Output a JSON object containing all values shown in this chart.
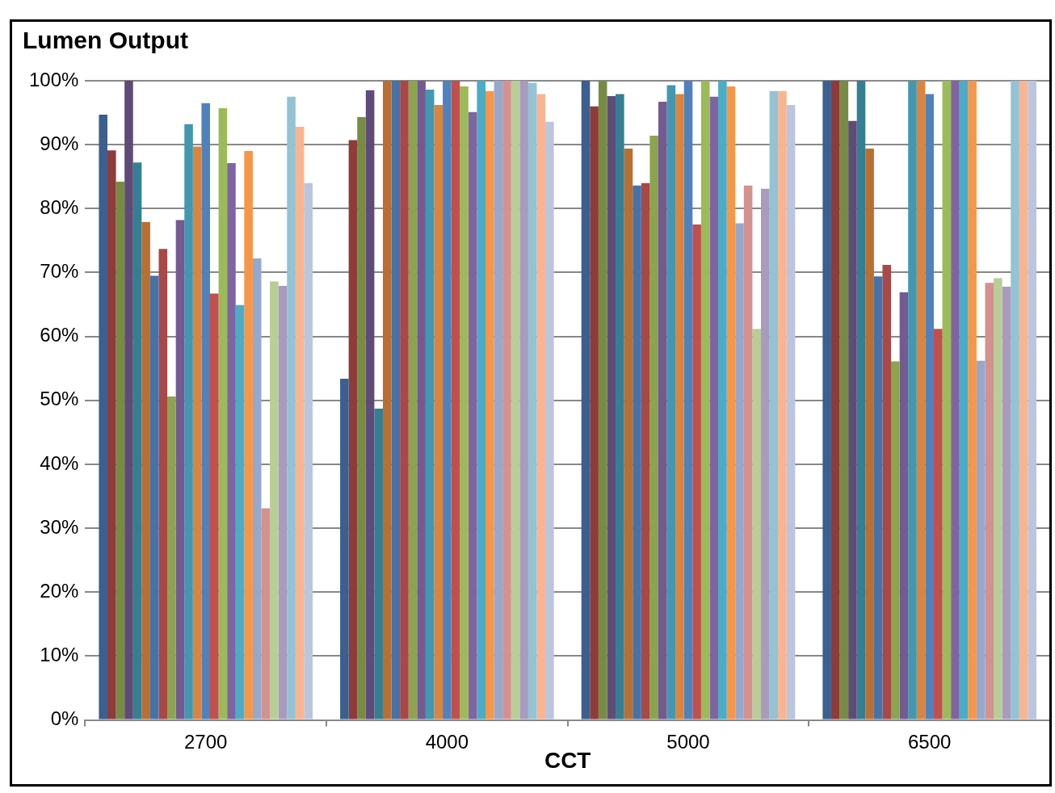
{
  "chart_data": {
    "type": "bar",
    "title": "Lumen Output",
    "xlabel": "CCT",
    "categories": [
      "2700",
      "4000",
      "5000",
      "6500"
    ],
    "series": [
      {
        "color": "#3b5f8e",
        "values": [
          94.7,
          53.4,
          100,
          100
        ]
      },
      {
        "color": "#8e3b3a",
        "values": [
          89.1,
          90.7,
          96.0,
          100
        ]
      },
      {
        "color": "#778c43",
        "values": [
          84.2,
          94.3,
          100,
          100
        ]
      },
      {
        "color": "#5f4b78",
        "values": [
          100,
          98.5,
          97.6,
          93.7
        ]
      },
      {
        "color": "#357f93",
        "values": [
          87.2,
          48.7,
          97.9,
          100
        ]
      },
      {
        "color": "#b96f32",
        "values": [
          77.9,
          100,
          89.4,
          89.4
        ]
      },
      {
        "color": "#4672a8",
        "values": [
          69.5,
          100,
          83.6,
          69.4
        ]
      },
      {
        "color": "#a94846",
        "values": [
          73.7,
          100,
          84.0,
          71.2
        ]
      },
      {
        "color": "#8aa54e",
        "values": [
          50.6,
          100,
          91.4,
          56.1
        ]
      },
      {
        "color": "#735a91",
        "values": [
          78.2,
          100,
          96.7,
          66.9
        ]
      },
      {
        "color": "#4298b0",
        "values": [
          93.2,
          98.6,
          99.3,
          100
        ]
      },
      {
        "color": "#db843d",
        "values": [
          89.7,
          96.2,
          97.9,
          100
        ]
      },
      {
        "color": "#4f81bd",
        "values": [
          96.5,
          100,
          100,
          97.9
        ]
      },
      {
        "color": "#c0504d",
        "values": [
          66.7,
          100,
          77.5,
          61.2
        ]
      },
      {
        "color": "#9bbb59",
        "values": [
          95.7,
          99.1,
          100,
          100
        ]
      },
      {
        "color": "#8064a2",
        "values": [
          87.1,
          95.1,
          97.5,
          100
        ]
      },
      {
        "color": "#4bacc6",
        "values": [
          64.9,
          100,
          100,
          100
        ]
      },
      {
        "color": "#f79646",
        "values": [
          89.0,
          98.4,
          99.1,
          100
        ]
      },
      {
        "color": "#95a9cf",
        "values": [
          72.2,
          100,
          77.7,
          56.2
        ]
      },
      {
        "color": "#d39190",
        "values": [
          33.1,
          100,
          83.6,
          68.4
        ]
      },
      {
        "color": "#b9cd97",
        "values": [
          68.6,
          100,
          61.2,
          69.1
        ]
      },
      {
        "color": "#a99bbd",
        "values": [
          67.9,
          100,
          83.1,
          67.8
        ]
      },
      {
        "color": "#93c3d5",
        "values": [
          97.5,
          99.7,
          98.4,
          100
        ]
      },
      {
        "color": "#f9b590",
        "values": [
          92.8,
          97.9,
          98.4,
          100
        ]
      },
      {
        "color": "#bac6df",
        "values": [
          84.0,
          93.6,
          96.2,
          100
        ]
      }
    ],
    "ylim": [
      0,
      100
    ],
    "yticks": [
      {
        "value": 0,
        "label": "0%"
      },
      {
        "value": 10,
        "label": "10%"
      },
      {
        "value": 20,
        "label": "20%"
      },
      {
        "value": 30,
        "label": "30%"
      },
      {
        "value": 40,
        "label": "40%"
      },
      {
        "value": 50,
        "label": "50%"
      },
      {
        "value": 60,
        "label": "60%"
      },
      {
        "value": 70,
        "label": "70%"
      },
      {
        "value": 80,
        "label": "80%"
      },
      {
        "value": 90,
        "label": "90%"
      },
      {
        "value": 100,
        "label": "100%"
      }
    ],
    "grid": "y",
    "legend": false
  }
}
